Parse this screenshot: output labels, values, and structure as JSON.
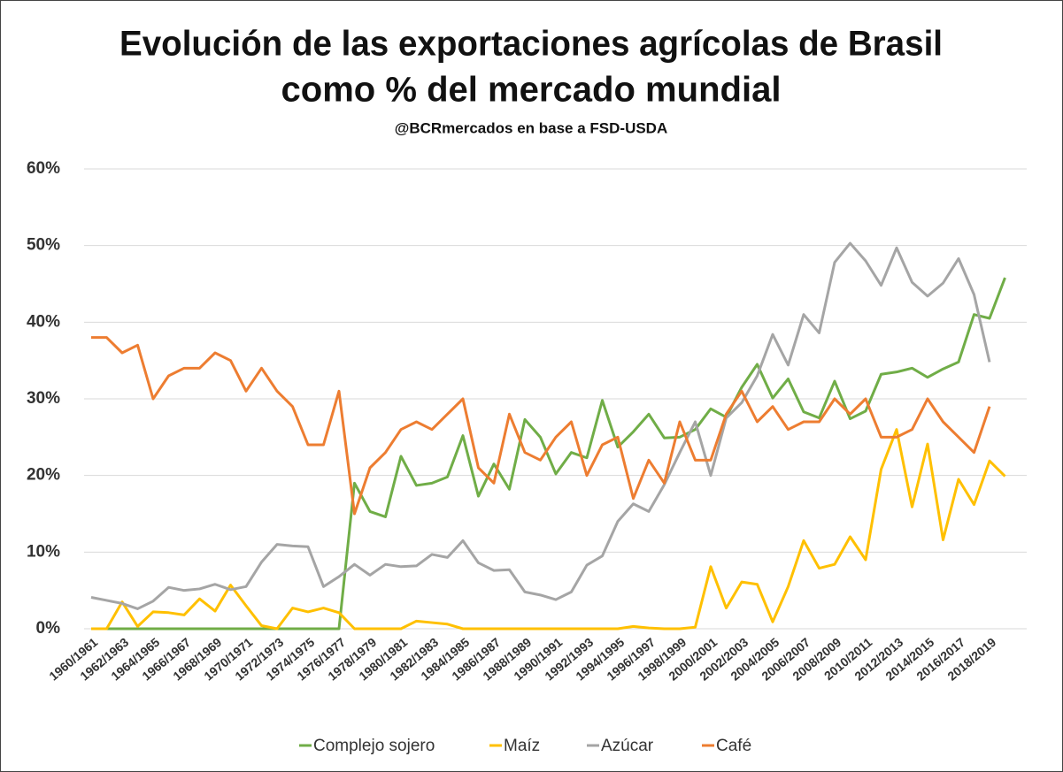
{
  "chart_data": {
    "type": "line",
    "title": "Evolución de las exportaciones agrícolas de Brasil",
    "title_line2": "como % del mercado mundial",
    "subtitle": "@BCRmercados  en base a FSD-USDA",
    "categories": [
      "1960/1961",
      null,
      "1962/1963",
      null,
      "1964/1965",
      null,
      "1966/1967",
      null,
      "1968/1969",
      null,
      "1970/1971",
      null,
      "1972/1973",
      null,
      "1974/1975",
      null,
      "1976/1977",
      null,
      "1978/1979",
      null,
      "1980/1981",
      null,
      "1982/1983",
      null,
      "1984/1985",
      null,
      "1986/1987",
      null,
      "1988/1989",
      null,
      "1990/1991",
      null,
      "1992/1993",
      null,
      "1994/1995",
      null,
      "1996/1997",
      null,
      "1998/1999",
      null,
      "2000/2001",
      null,
      "2002/2003",
      null,
      "2004/2005",
      null,
      "2006/2007",
      null,
      "2008/2009",
      null,
      "2010/2011",
      null,
      "2012/2013",
      null,
      "2014/2015",
      null,
      "2016/2017",
      null,
      "2018/2019",
      null
    ],
    "series": [
      {
        "name": "Complejo sojero",
        "color": "#70ad47",
        "values": [
          0,
          0,
          0,
          0,
          0,
          0,
          0,
          0,
          0,
          0,
          0,
          0,
          0,
          0,
          0,
          0,
          0,
          19,
          15.3,
          14.6,
          22.5,
          18.7,
          19,
          19.8,
          25.2,
          17.3,
          21.5,
          18.2,
          27.3,
          25,
          20.2,
          23,
          22.3,
          29.8,
          23.7,
          25.7,
          28,
          24.9,
          25,
          26,
          28.7,
          27.6,
          31.5,
          34.5,
          30.1,
          32.6,
          28.3,
          27.5,
          32.3,
          27.4,
          28.4,
          33.2,
          33.5,
          34,
          32.8,
          33.9,
          34.8,
          41,
          40.5,
          45.8
        ]
      },
      {
        "name": "Maíz",
        "color": "#ffc000",
        "values": [
          0,
          0,
          3.5,
          0.3,
          2.2,
          2.1,
          1.8,
          3.9,
          2.3,
          5.7,
          3,
          0.4,
          0,
          2.7,
          2.2,
          2.7,
          2.1,
          0,
          0,
          0,
          0,
          1,
          0.8,
          0.6,
          0,
          0,
          0,
          0,
          0,
          0,
          0,
          0,
          0,
          0,
          0,
          0.3,
          0.1,
          0,
          0,
          0.2,
          8.1,
          2.7,
          6.1,
          5.8,
          0.9,
          5.5,
          11.5,
          7.9,
          8.4,
          12,
          9,
          20.8,
          26,
          15.9,
          24.1,
          11.6,
          19.5,
          16.2,
          21.9,
          19.9
        ]
      },
      {
        "name": "Azúcar",
        "color": "#a5a5a5",
        "values": [
          4.1,
          3.7,
          3.3,
          2.6,
          3.6,
          5.4,
          5,
          5.2,
          5.8,
          5.1,
          5.5,
          8.7,
          11,
          10.8,
          10.7,
          5.5,
          6.8,
          8.4,
          7,
          8.4,
          8.1,
          8.2,
          9.7,
          9.3,
          11.5,
          8.6,
          7.6,
          7.7,
          4.8,
          4.4,
          3.8,
          4.8,
          8.3,
          9.5,
          14,
          16.3,
          15.3,
          18.8,
          23,
          27,
          20,
          27.5,
          29.5,
          33,
          38.4,
          34.4,
          41,
          38.6,
          47.8,
          50.3,
          48,
          44.8,
          49.7,
          45.2,
          43.4,
          45.1,
          48.3,
          43.6,
          34.8,
          null
        ]
      },
      {
        "name": "Café",
        "color": "#ed7d31",
        "values": [
          38,
          38,
          36,
          37,
          30,
          33,
          34,
          34,
          36,
          35,
          31,
          34,
          31,
          29,
          24,
          24,
          31,
          15,
          21,
          23,
          26,
          27,
          26,
          28,
          30,
          21,
          19,
          28,
          23,
          22,
          25,
          27,
          20,
          24,
          25,
          17,
          22,
          19,
          27,
          22,
          22,
          28,
          31,
          27,
          29,
          26,
          27,
          27,
          30,
          28,
          30,
          25,
          25,
          26,
          30,
          27,
          25,
          23,
          29,
          null
        ]
      }
    ],
    "ylim": [
      0,
      60
    ],
    "yticks": [
      {
        "value": 0,
        "label": "0%"
      },
      {
        "value": 10,
        "label": "10%"
      },
      {
        "value": 20,
        "label": "20%"
      },
      {
        "value": 30,
        "label": "30%"
      },
      {
        "value": 40,
        "label": "40%"
      },
      {
        "value": 50,
        "label": "50%"
      },
      {
        "value": 60,
        "label": "60%"
      }
    ],
    "grid": true,
    "legend": "bottom"
  }
}
